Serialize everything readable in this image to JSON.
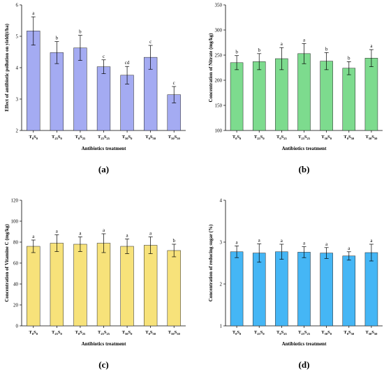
{
  "chart_data": [
    {
      "type": "bar",
      "panel_label": "(a)",
      "xlabel": "Antibiotics treatment",
      "ylabel": "Effect of antibiotic pollution on yield(t/ha)",
      "ylim": [
        2,
        6
      ],
      "yticks": [
        2,
        3,
        4,
        5,
        6
      ],
      "categories": [
        {
          "main": "T",
          "sub1": "0",
          "mid": "S",
          "sub2": "0"
        },
        {
          "main": "T",
          "sub1": "25",
          "mid": "S",
          "sub2": "0"
        },
        {
          "main": "T",
          "sub1": "0",
          "mid": "S",
          "sub2": "25"
        },
        {
          "main": "T",
          "sub1": "25",
          "mid": "S",
          "sub2": "25"
        },
        {
          "main": "T",
          "sub1": "50",
          "mid": "S",
          "sub2": "0"
        },
        {
          "main": "T",
          "sub1": "0",
          "mid": "S",
          "sub2": "50"
        },
        {
          "main": "T",
          "sub1": "50",
          "mid": "S",
          "sub2": "50"
        }
      ],
      "values": [
        5.17,
        4.48,
        4.63,
        4.03,
        3.76,
        4.33,
        3.14
      ],
      "errors": [
        0.45,
        0.35,
        0.4,
        0.22,
        0.28,
        0.38,
        0.26
      ],
      "significance": [
        "a",
        "b",
        "b",
        "c",
        "cd",
        "c",
        "c"
      ],
      "color": "#a4abf2"
    },
    {
      "type": "bar",
      "panel_label": "(b)",
      "xlabel": "Antibiotics treatment",
      "ylabel": "Concentration of Nitrate (mg/kg)",
      "ylim": [
        100,
        350
      ],
      "yticks": [
        100,
        150,
        200,
        250,
        300,
        350
      ],
      "categories": [
        {
          "main": "T",
          "sub1": "0",
          "mid": "S",
          "sub2": "0"
        },
        {
          "main": "T",
          "sub1": "25",
          "mid": "S",
          "sub2": "0"
        },
        {
          "main": "T",
          "sub1": "0",
          "mid": "S",
          "sub2": "25"
        },
        {
          "main": "T",
          "sub1": "25",
          "mid": "S",
          "sub2": "25"
        },
        {
          "main": "T",
          "sub1": "50",
          "mid": "S",
          "sub2": "0"
        },
        {
          "main": "T",
          "sub1": "0",
          "mid": "S",
          "sub2": "50"
        },
        {
          "main": "T",
          "sub1": "50",
          "mid": "S",
          "sub2": "50"
        }
      ],
      "values": [
        235,
        237,
        243,
        253,
        238,
        224,
        244
      ],
      "errors": [
        14,
        16,
        22,
        20,
        17,
        13,
        17
      ],
      "significance": [
        "b",
        "b",
        "a",
        "a",
        "b",
        "b",
        "a"
      ],
      "color": "#7ddb8e"
    },
    {
      "type": "bar",
      "panel_label": "(c)",
      "xlabel": "Antibiotics treatment",
      "ylabel": "Concentration of Vitamine C (mg/kg)",
      "ylim": [
        0,
        120
      ],
      "yticks": [
        0,
        20,
        40,
        60,
        80,
        100,
        120
      ],
      "categories": [
        {
          "main": "T",
          "sub1": "0",
          "mid": "S",
          "sub2": "0"
        },
        {
          "main": "T",
          "sub1": "25",
          "mid": "S",
          "sub2": "0"
        },
        {
          "main": "T",
          "sub1": "0",
          "mid": "S",
          "sub2": "25"
        },
        {
          "main": "T",
          "sub1": "25",
          "mid": "S",
          "sub2": "25"
        },
        {
          "main": "T",
          "sub1": "50",
          "mid": "S",
          "sub2": "0"
        },
        {
          "main": "T",
          "sub1": "0",
          "mid": "S",
          "sub2": "50"
        },
        {
          "main": "T",
          "sub1": "50",
          "mid": "S",
          "sub2": "50"
        }
      ],
      "values": [
        76,
        79,
        78,
        79,
        76,
        77,
        72
      ],
      "errors": [
        6,
        8,
        7,
        9,
        7,
        8,
        6
      ],
      "significance": [
        "a",
        "a",
        "a",
        "a",
        "a",
        "a",
        "b"
      ],
      "color": "#f7e27a"
    },
    {
      "type": "bar",
      "panel_label": "(d)",
      "xlabel": "Antibiotics treatment",
      "ylabel": "Concentration of reducing sugar (%)",
      "ylim": [
        1,
        4
      ],
      "yticks": [
        1,
        2,
        3,
        4
      ],
      "categories": [
        {
          "main": "T",
          "sub1": "0",
          "mid": "S",
          "sub2": "0"
        },
        {
          "main": "T",
          "sub1": "25",
          "mid": "S",
          "sub2": "0"
        },
        {
          "main": "T",
          "sub1": "0",
          "mid": "S",
          "sub2": "25"
        },
        {
          "main": "T",
          "sub1": "25",
          "mid": "S",
          "sub2": "25"
        },
        {
          "main": "T",
          "sub1": "50",
          "mid": "S",
          "sub2": "0"
        },
        {
          "main": "T",
          "sub1": "0",
          "mid": "S",
          "sub2": "50"
        },
        {
          "main": "T",
          "sub1": "50",
          "mid": "S",
          "sub2": "50"
        }
      ],
      "values": [
        2.77,
        2.74,
        2.77,
        2.76,
        2.74,
        2.67,
        2.75
      ],
      "errors": [
        0.14,
        0.22,
        0.18,
        0.13,
        0.13,
        0.1,
        0.2
      ],
      "significance": [
        "a",
        "a",
        "a",
        "a",
        "a",
        "a",
        "a"
      ],
      "color": "#45b6f5"
    }
  ]
}
